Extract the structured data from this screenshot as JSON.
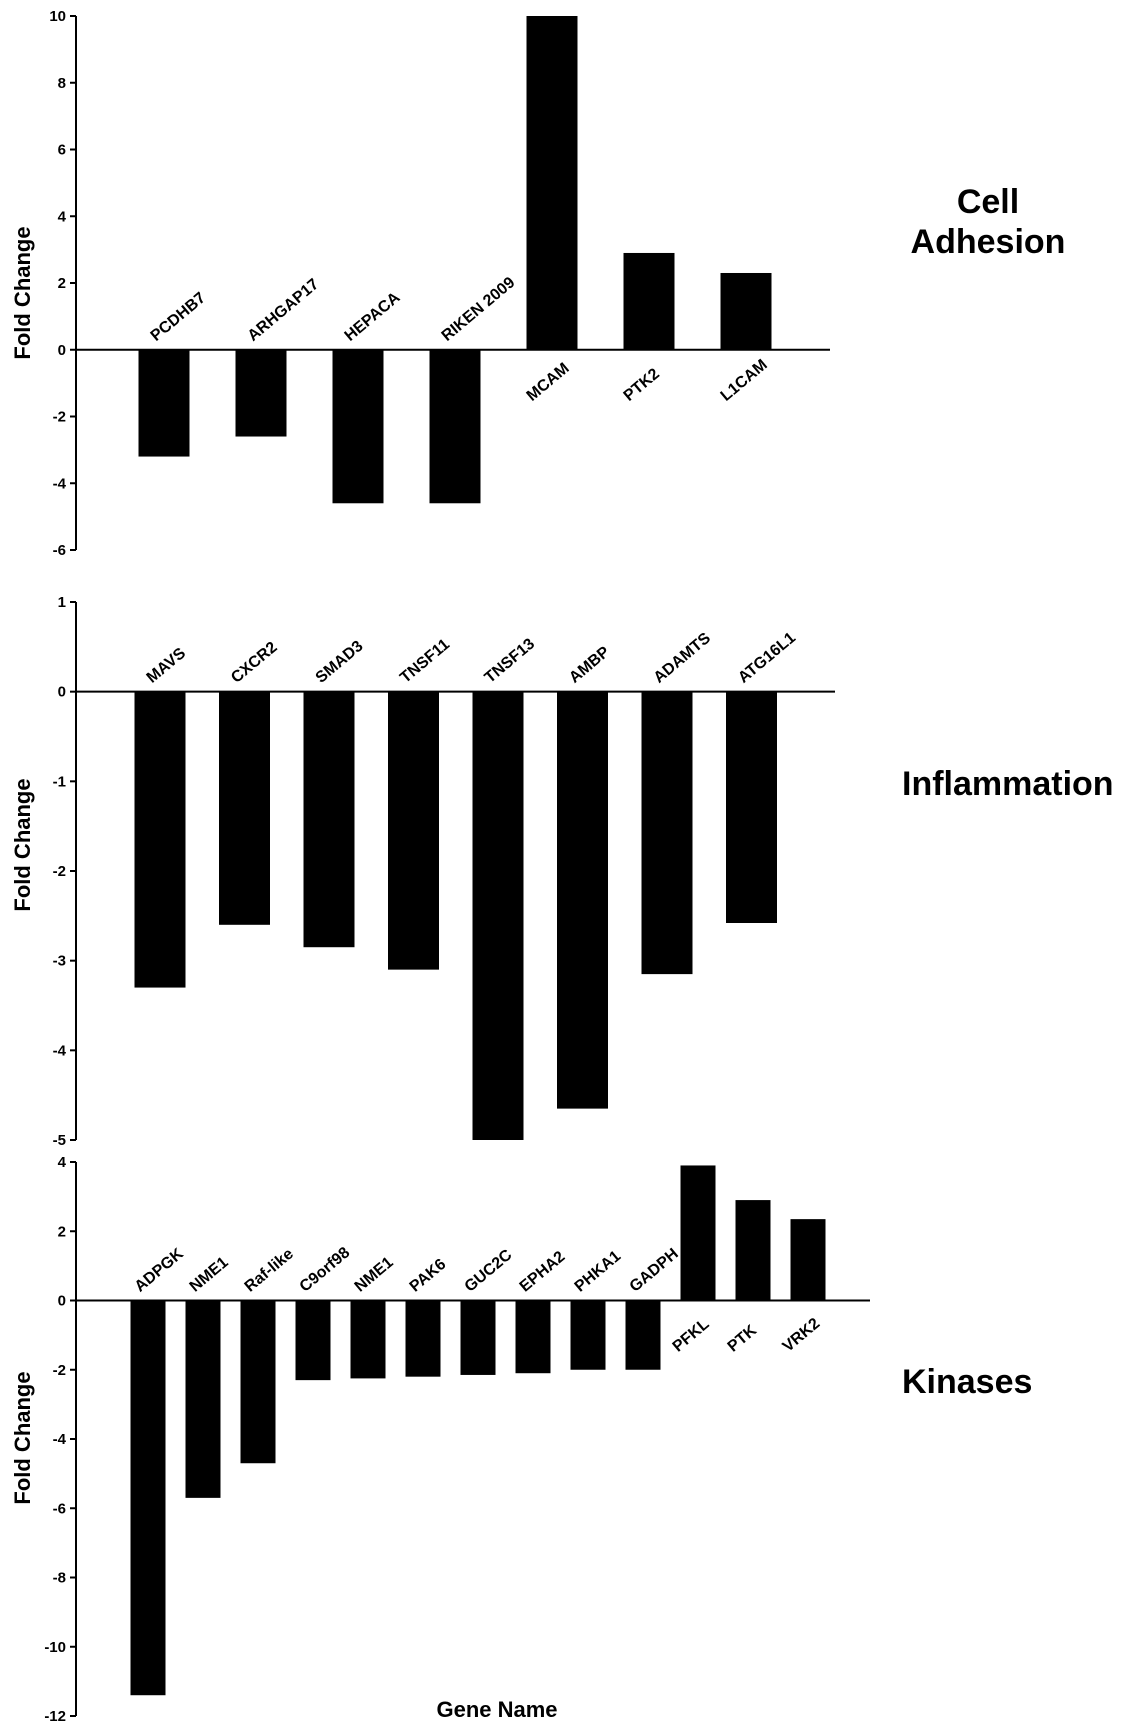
{
  "figure": {
    "xlabel": "Gene Name"
  },
  "chart_data": [
    {
      "type": "bar",
      "title_lines": [
        "Cell",
        "Adhesion"
      ],
      "ylabel": "Fold Change",
      "ylim": [
        -6,
        10
      ],
      "yticks": [
        -6,
        -4,
        -2,
        0,
        2,
        4,
        6,
        8,
        10
      ],
      "categories": [
        "PCDHB7",
        "ARHGAP17",
        "HEPACA",
        "RIKEN 2009",
        "MCAM",
        "PTK2",
        "L1CAM"
      ],
      "values": [
        -3.2,
        -2.6,
        -4.6,
        -4.6,
        10.0,
        2.9,
        2.3
      ],
      "bar_color": "#000000",
      "grid": false
    },
    {
      "type": "bar",
      "title_lines": [
        "Inflammation"
      ],
      "ylabel": "Fold Change",
      "ylim": [
        -5,
        1
      ],
      "yticks": [
        -5,
        -4,
        -3,
        -2,
        -1,
        0,
        1
      ],
      "categories": [
        "MAVS",
        "CXCR2",
        "SMAD3",
        "TNSF11",
        "TNSF13",
        "AMBP",
        "ADAMTS",
        "ATG16L1"
      ],
      "values": [
        -3.3,
        -2.6,
        -2.85,
        -3.1,
        -5.0,
        -4.65,
        -3.15,
        -2.58
      ],
      "bar_color": "#000000",
      "grid": false
    },
    {
      "type": "bar",
      "title_lines": [
        "Kinases"
      ],
      "ylabel": "Fold Change",
      "ylim": [
        -12,
        4
      ],
      "yticks": [
        -12,
        -10,
        -8,
        -6,
        -4,
        -2,
        0,
        2,
        4
      ],
      "categories": [
        "ADPGK",
        "NME1",
        "Raf-like",
        "C9orf98",
        "NME1",
        "PAK6",
        "GUC2C",
        "EPHA2",
        "PHKA1",
        "GADPH",
        "PFKL",
        "PTK",
        "VRK2"
      ],
      "values": [
        -11.4,
        -5.7,
        -4.7,
        -2.3,
        -2.25,
        -2.2,
        -2.15,
        -2.1,
        -2.0,
        -2.0,
        3.9,
        2.9,
        2.35
      ],
      "bar_color": "#000000",
      "grid": false
    }
  ]
}
